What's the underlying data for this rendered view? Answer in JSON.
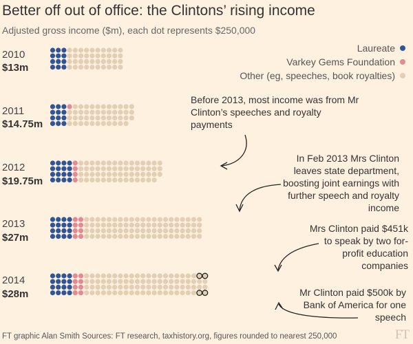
{
  "title": "Better off out of office: the Clintons’ rising income",
  "subtitle": "Adjusted gross income ($m),  each dot represents $250,000",
  "footer": "FT graphic Alan Smith   Sources: FT research, taxhistory.org, figures rounded to nearest 250,000",
  "logo": "FT",
  "colors": {
    "background": "#fff1e0",
    "laureate": "#2f5597",
    "varkey": "#e48a94",
    "other": "#e2cfb4",
    "highlight_ring": "#222222"
  },
  "legend": [
    {
      "label": "Laureate",
      "series": "laureate"
    },
    {
      "label": "Varkey Gems Foundation",
      "series": "varkey"
    },
    {
      "label": "Other (eg, speeches, book royalties)",
      "series": "other"
    }
  ],
  "annotations": [
    {
      "text": "Before 2013, most income was from Mr Clinton’s speeches and royalty payments"
    },
    {
      "text": "In Feb 2013 Mrs Clinton leaves state department, boosting joint earnings with further speech and royalty income"
    },
    {
      "text": "Mrs Clinton paid $451k to speak by two for-profit education companies"
    },
    {
      "text": "Mr Clinton paid $500k by Bank of America for one speech"
    }
  ],
  "chart_data": {
    "type": "dot",
    "unit": "$m",
    "dot_value": 0.25,
    "categories": [
      "2010",
      "2011",
      "2012",
      "2013",
      "2014"
    ],
    "totals": [
      "$13m",
      "$14.75m",
      "$19.75m",
      "$27m",
      "$28m"
    ],
    "series": [
      {
        "name": "Laureate",
        "key": "laureate",
        "dots": [
          12,
          12,
          16,
          16,
          16
        ]
      },
      {
        "name": "Varkey Gems Foundation",
        "key": "varkey",
        "dots": [
          0,
          1,
          4,
          8,
          8
        ]
      },
      {
        "name": "Other (eg, speeches, book royalties)",
        "key": "other",
        "dots": [
          40,
          46,
          59,
          84,
          88
        ]
      }
    ],
    "highlighted": {
      "year": "2014",
      "dots": [
        {
          "row": 0,
          "col_from_end": 1
        },
        {
          "row": 0,
          "col_from_end": 0
        },
        {
          "row": 3,
          "col_from_end": 1
        },
        {
          "row": 3,
          "col_from_end": 0
        }
      ]
    }
  }
}
